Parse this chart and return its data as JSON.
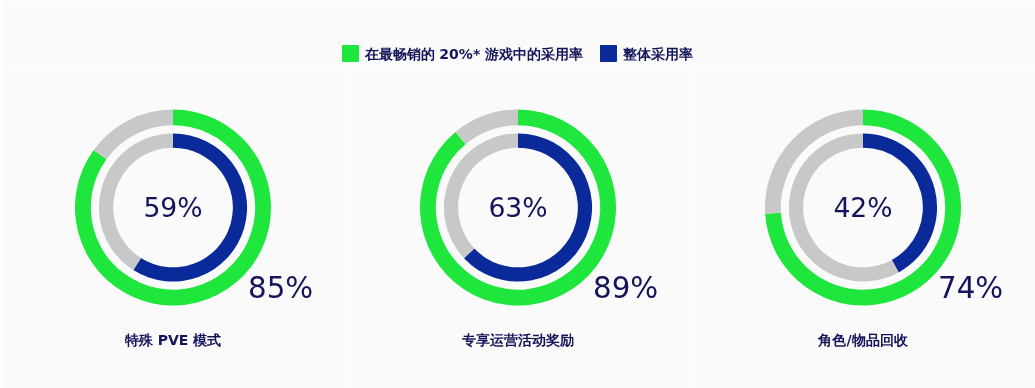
{
  "chart_data": [
    {
      "type": "donut",
      "title": "特殊 PVE 模式",
      "legend": "top",
      "series": [
        {
          "name": "在最畅销的 20%* 游戏中的采用率",
          "color": "#1ee63c",
          "colors": [
            "#1ee63c",
            "#c8c8c8"
          ],
          "values": [
            85,
            15
          ],
          "value_labels": [
            "85%",
            null
          ]
        },
        {
          "name": "整体采用率",
          "color": "#0b2a9a",
          "colors": [
            "#0b2a9a",
            "#c8c8c8"
          ],
          "values": [
            59,
            41
          ],
          "value_labels": [
            "59%",
            null
          ]
        }
      ]
    },
    {
      "type": "donut",
      "title": "专享运营活动奖励",
      "series": [
        {
          "name": "在最畅销的 20%* 游戏中的采用率",
          "color": "#1ee63c",
          "colors": [
            "#1ee63c",
            "#c8c8c8"
          ],
          "values": [
            89,
            11
          ],
          "value_labels": [
            "89%",
            null
          ]
        },
        {
          "name": "整体采用率",
          "color": "#0b2a9a",
          "colors": [
            "#0b2a9a",
            "#c8c8c8"
          ],
          "values": [
            63,
            37
          ],
          "value_labels": [
            "63%",
            null
          ]
        }
      ]
    },
    {
      "type": "donut",
      "title": "角色/物品回收",
      "series": [
        {
          "name": "在最畅销的 20%* 游戏中的采用率",
          "color": "#1ee63c",
          "colors": [
            "#1ee63c",
            "#c8c8c8"
          ],
          "values": [
            74,
            26
          ],
          "value_labels": [
            "74%",
            null
          ]
        },
        {
          "name": "整体采用率",
          "color": "#0b2a9a",
          "colors": [
            "#0b2a9a",
            "#c8c8c8"
          ],
          "values": [
            42,
            58
          ],
          "value_labels": [
            "42%",
            null
          ]
        }
      ]
    }
  ]
}
